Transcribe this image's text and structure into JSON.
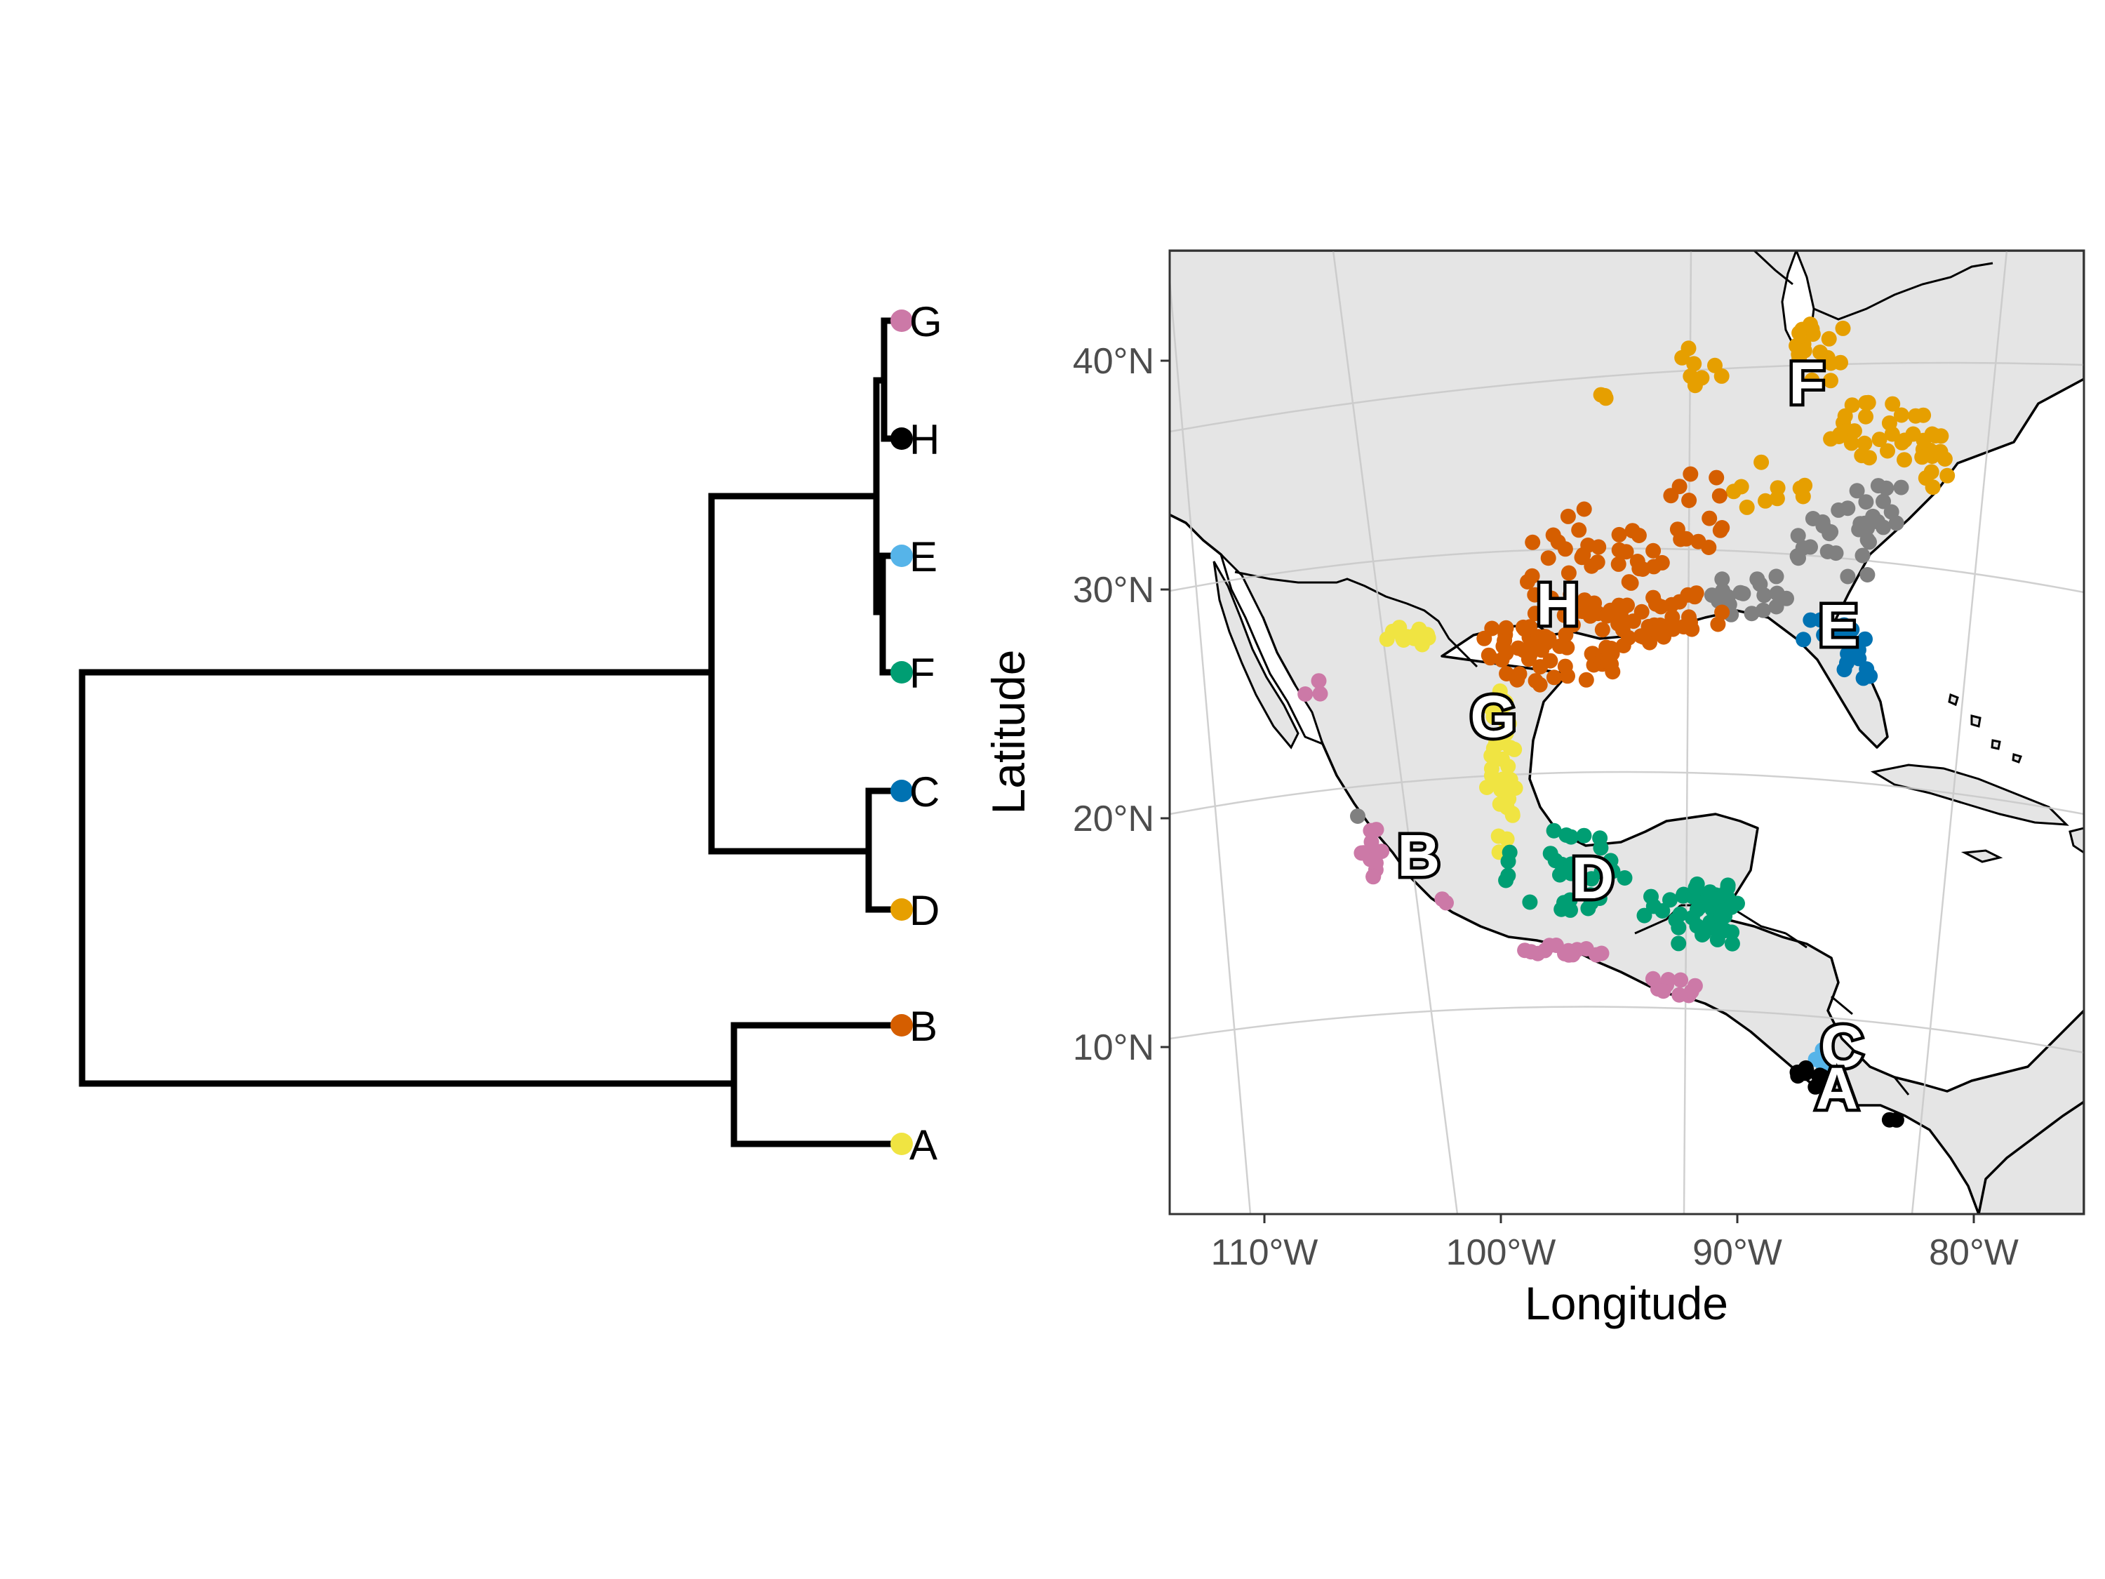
{
  "tree": {
    "tips": [
      {
        "label": "G",
        "color": "#CC79A7"
      },
      {
        "label": "H",
        "color": "#000000"
      },
      {
        "label": "E",
        "color": "#56B4E9"
      },
      {
        "label": "F",
        "color": "#009E73"
      },
      {
        "label": "C",
        "color": "#0072B2"
      },
      {
        "label": "D",
        "color": "#E69F00"
      },
      {
        "label": "B",
        "color": "#D55E00"
      },
      {
        "label": "A",
        "color": "#F0E442"
      }
    ]
  },
  "map": {
    "x_axis_title": "Longitude",
    "y_axis_title": "Latitude",
    "x_ticks": [
      "110°W",
      "100°W",
      "90°W",
      "80°W"
    ],
    "y_ticks": [
      "40°N",
      "30°N",
      "20°N",
      "10°N"
    ],
    "x_tick_values": [
      -110,
      -100,
      -90,
      -80
    ],
    "y_tick_values": [
      40,
      30,
      20,
      10
    ],
    "land_color": "#e5e5e5",
    "water_color": "#ffffff",
    "clusters": [
      {
        "label": "F",
        "color": "#E69F00",
        "region": "eastern US interior"
      },
      {
        "label": "H",
        "color": "#D55E00",
        "region": "Texas / Gulf coast"
      },
      {
        "label": "E",
        "color": "#0072B2",
        "region": "Florida"
      },
      {
        "label": "G",
        "color": "#F0E442",
        "region": "northeastern Mexico"
      },
      {
        "label": "B",
        "color": "#CC79A7",
        "region": "Pacific coast of Mexico"
      },
      {
        "label": "D",
        "color": "#009E73",
        "region": "southern Mexico / Yucatan"
      },
      {
        "label": "C",
        "color": "#56B4E9",
        "region": "Costa Rica"
      },
      {
        "label": "A",
        "color": "#000000",
        "region": "Costa Rica / Panama"
      },
      {
        "label": "",
        "color": "#808080",
        "region": "southeastern US"
      }
    ]
  }
}
